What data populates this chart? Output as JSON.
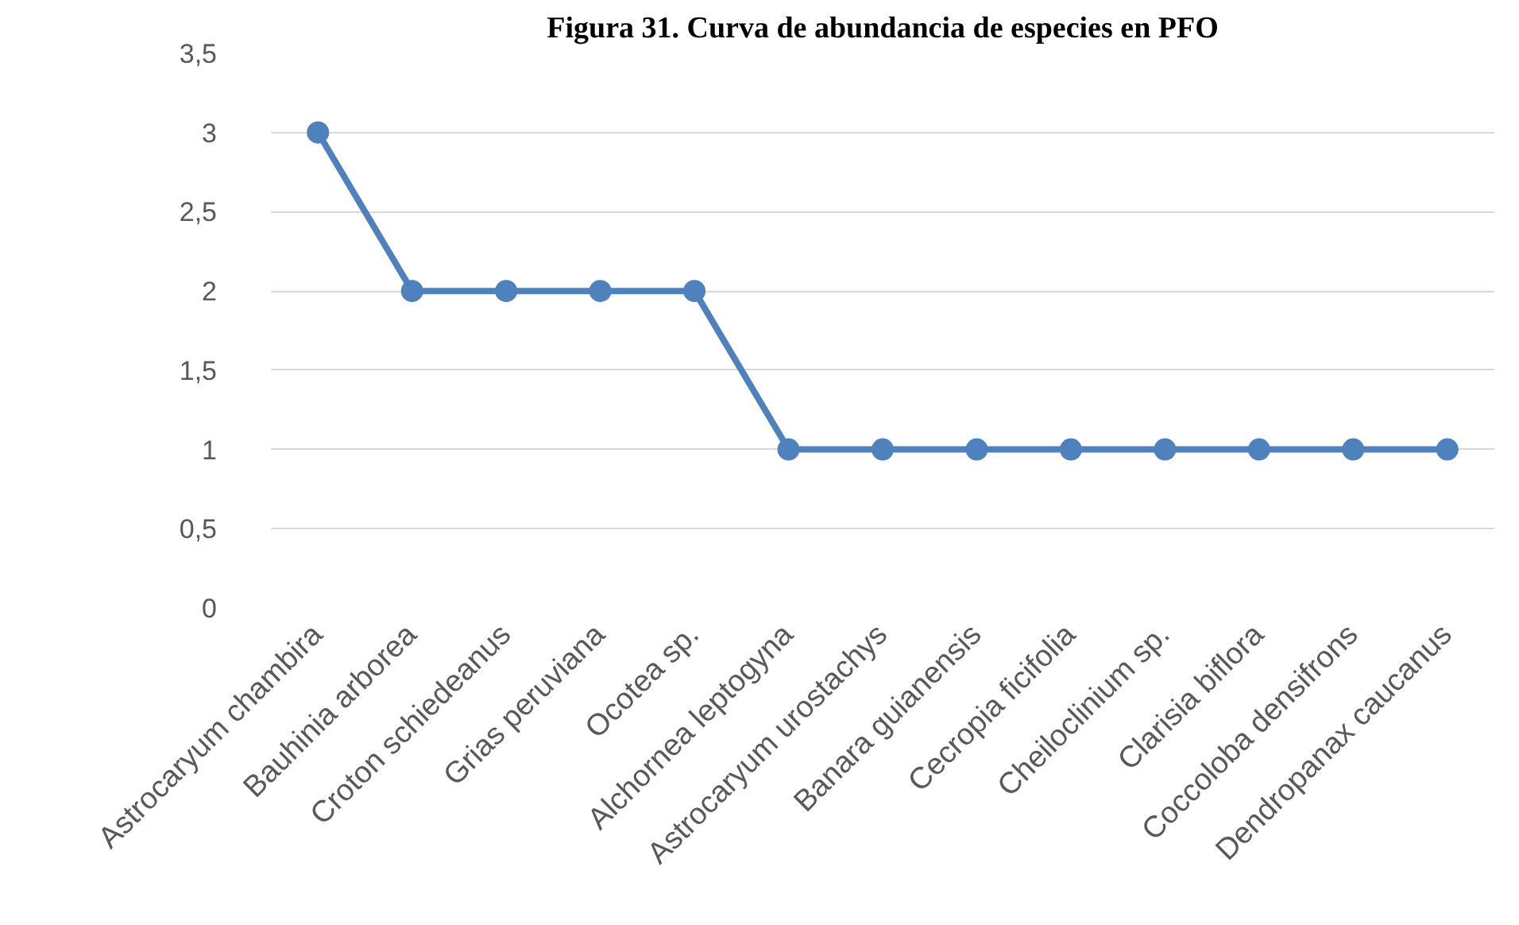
{
  "chart_data": {
    "type": "line",
    "title": "Figura 31. Curva de abundancia de especies en PFO",
    "categories": [
      "Astrocaryum chambira",
      "Bauhinia arborea",
      "Croton schiedeanus",
      "Grias peruviana",
      "Ocotea sp.",
      "Alchornea leptogyna",
      "Astrocaryum urostachys",
      "Banara guianensis",
      "Cecropia ficifolia",
      "Cheiloclinium sp.",
      "Clarisia biflora",
      "Coccoloba densifrons",
      "Dendropanax caucanus"
    ],
    "values": [
      3,
      2,
      2,
      2,
      2,
      1,
      1,
      1,
      1,
      1,
      1,
      1,
      1
    ],
    "color": "#4f81bd",
    "ylim": [
      0,
      3.5
    ],
    "yticks": [
      0,
      {
        "value": 0.5,
        "label": "0,5"
      },
      1,
      {
        "value": 1.5,
        "label": "1,5"
      },
      2,
      {
        "value": 2.5,
        "label": "2,5"
      },
      3,
      {
        "value": 3.5,
        "label": "3,5"
      }
    ],
    "grid": "y",
    "marker": "circle",
    "line_style": "solid"
  }
}
